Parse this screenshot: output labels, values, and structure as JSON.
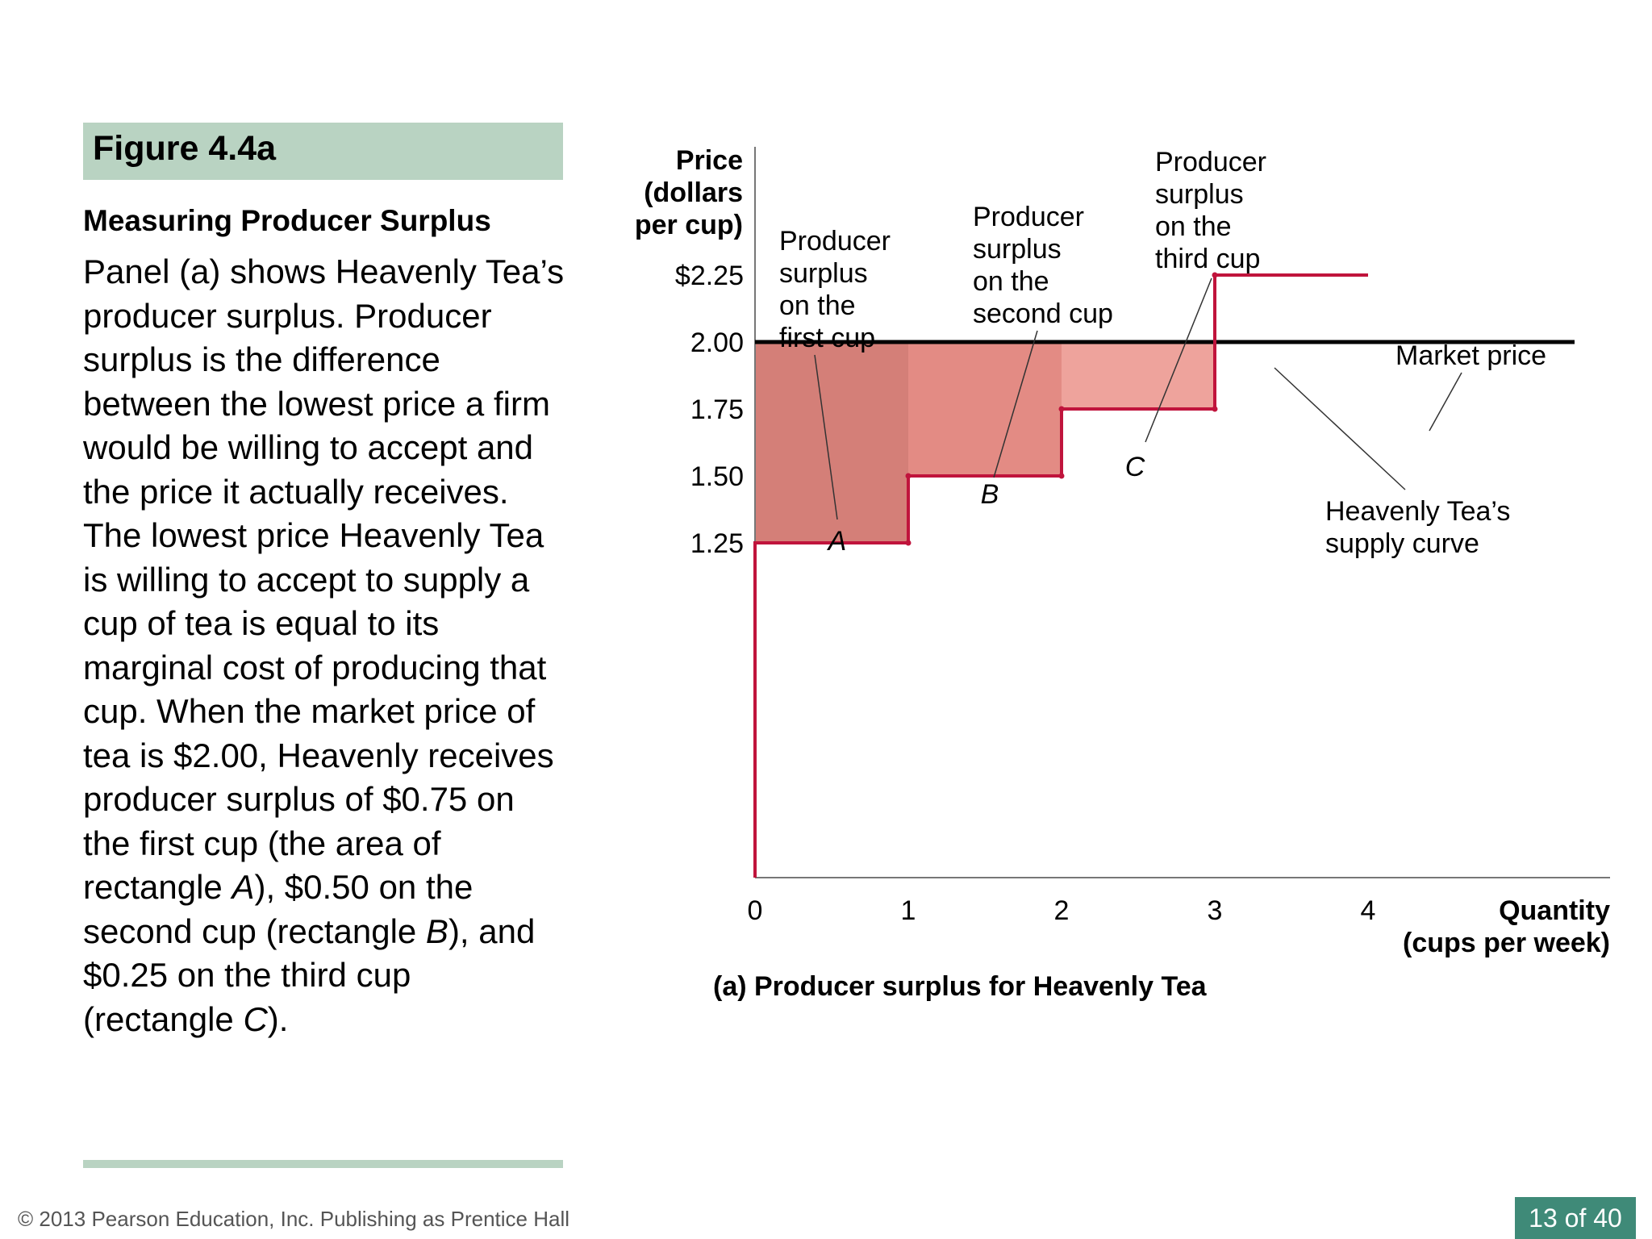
{
  "slide": {
    "figure_label": "Figure 4.4a",
    "subtitle": "Measuring Producer Surplus",
    "body_parts": [
      "Panel (a) shows Heavenly Tea’s producer surplus. Producer surplus is the difference between the lowest price a firm would be willing to accept and the price it actually receives. The lowest price Heavenly Tea is willing to accept to supply a cup of tea is equal to its marginal cost of producing that cup. When the market price of tea is $2.00, Heavenly receives producer surplus of $0.75 on the first cup (the area of rectangle ",
      "A",
      "), $0.50 on the second cup (rectangle ",
      "B",
      "), and $0.25 on the third cup (rectangle ",
      "C",
      ")."
    ],
    "copyright": "© 2013 Pearson Education, Inc. Publishing as Prentice Hall",
    "page_number": "13 of 40"
  },
  "chart_data": {
    "type": "line",
    "title": "(a) Producer surplus for Heavenly Tea",
    "ylabel": [
      "Price",
      "(dollars",
      "per cup)"
    ],
    "xlabel": [
      "Quantity",
      "(cups per week)"
    ],
    "xlim": [
      0,
      5
    ],
    "ylim": [
      0,
      2.25
    ],
    "x_ticks": [
      "0",
      "1",
      "2",
      "3",
      "4"
    ],
    "y_ticks": [
      {
        "value": 2.25,
        "label": "$2.25"
      },
      {
        "value": 2.0,
        "label": "2.00"
      },
      {
        "value": 1.75,
        "label": "1.75"
      },
      {
        "value": 1.5,
        "label": "1.50"
      },
      {
        "value": 1.25,
        "label": "1.25"
      }
    ],
    "market_price": 2.0,
    "supply_steps": [
      {
        "from": 0,
        "to": 1,
        "price": 1.25
      },
      {
        "from": 1,
        "to": 2,
        "price": 1.5
      },
      {
        "from": 2,
        "to": 3,
        "price": 1.75
      },
      {
        "from": 3,
        "to": 4,
        "price": 2.25
      }
    ],
    "surplus_areas": [
      {
        "label": "A",
        "from": 0,
        "to": 1,
        "bottom": 1.25,
        "top": 2.0,
        "value": 0.75,
        "color": "#d47f78"
      },
      {
        "label": "B",
        "from": 1,
        "to": 2,
        "bottom": 1.5,
        "top": 2.0,
        "value": 0.5,
        "color": "#e38b84"
      },
      {
        "label": "C",
        "from": 2,
        "to": 3,
        "bottom": 1.75,
        "top": 2.0,
        "value": 0.25,
        "color": "#eea39c"
      }
    ],
    "annotations": [
      [
        "Producer",
        "surplus",
        "on the",
        "first cup"
      ],
      [
        "Producer",
        "surplus",
        "on the",
        "second cup"
      ],
      [
        "Producer",
        "surplus",
        "on the",
        "third cup"
      ],
      [
        "Market price"
      ],
      [
        "Heavenly Tea’s",
        "supply curve"
      ]
    ],
    "colors": {
      "supply": "#c0143c",
      "market": "#000000",
      "axis": "#777777"
    }
  }
}
